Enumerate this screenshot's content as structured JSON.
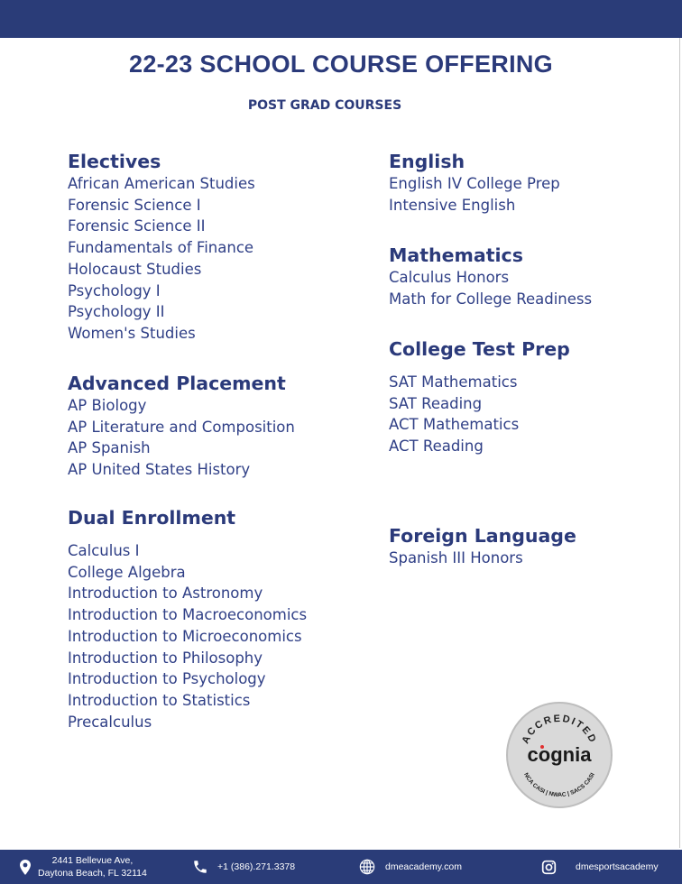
{
  "title": "22-23 SCHOOL COURSE OFFERING",
  "subtitle": "POST GRAD COURSES",
  "sections": {
    "electives": {
      "heading": "Electives",
      "items": [
        "African American Studies",
        "Forensic Science I",
        "Forensic Science II",
        "Fundamentals of Finance",
        "Holocaust Studies",
        "Psychology I",
        "Psychology II",
        "Women's Studies"
      ]
    },
    "ap": {
      "heading": "Advanced Placement",
      "items": [
        "AP Biology",
        "AP Literature and Composition",
        "AP Spanish",
        "AP United States History"
      ]
    },
    "dual": {
      "heading": "Dual Enrollment",
      "items": [
        "Calculus I",
        "College Algebra",
        "Introduction to Astronomy",
        "Introduction to Macroeconomics",
        "Introduction to Microeconomics",
        "Introduction to Philosophy",
        "Introduction to Psychology",
        "Introduction to Statistics",
        "Precalculus"
      ]
    },
    "english": {
      "heading": "English",
      "items": [
        "English IV College Prep",
        "Intensive English"
      ]
    },
    "math": {
      "heading": "Mathematics",
      "items": [
        "Calculus Honors",
        "Math for College Readiness"
      ]
    },
    "testprep": {
      "heading": "College Test Prep",
      "items": [
        "SAT Mathematics",
        "SAT Reading",
        "ACT Mathematics",
        "ACT Reading"
      ]
    },
    "foreign": {
      "heading": "Foreign Language",
      "items": [
        "Spanish III Honors"
      ]
    }
  },
  "seal": {
    "top": "ACCREDITED",
    "brand": "cognia",
    "bottom": "NCA CASI | NWAC | SACS CASI"
  },
  "footer": {
    "address_line1": "2441 Bellevue Ave,",
    "address_line2": "Daytona Beach, FL 32114",
    "phone": "+1 (386).271.3378",
    "website": "dmeacademy.com",
    "instagram": "dmesportsacademy"
  },
  "colors": {
    "brand": "#2a3c78",
    "text": "#2b3a7a"
  }
}
